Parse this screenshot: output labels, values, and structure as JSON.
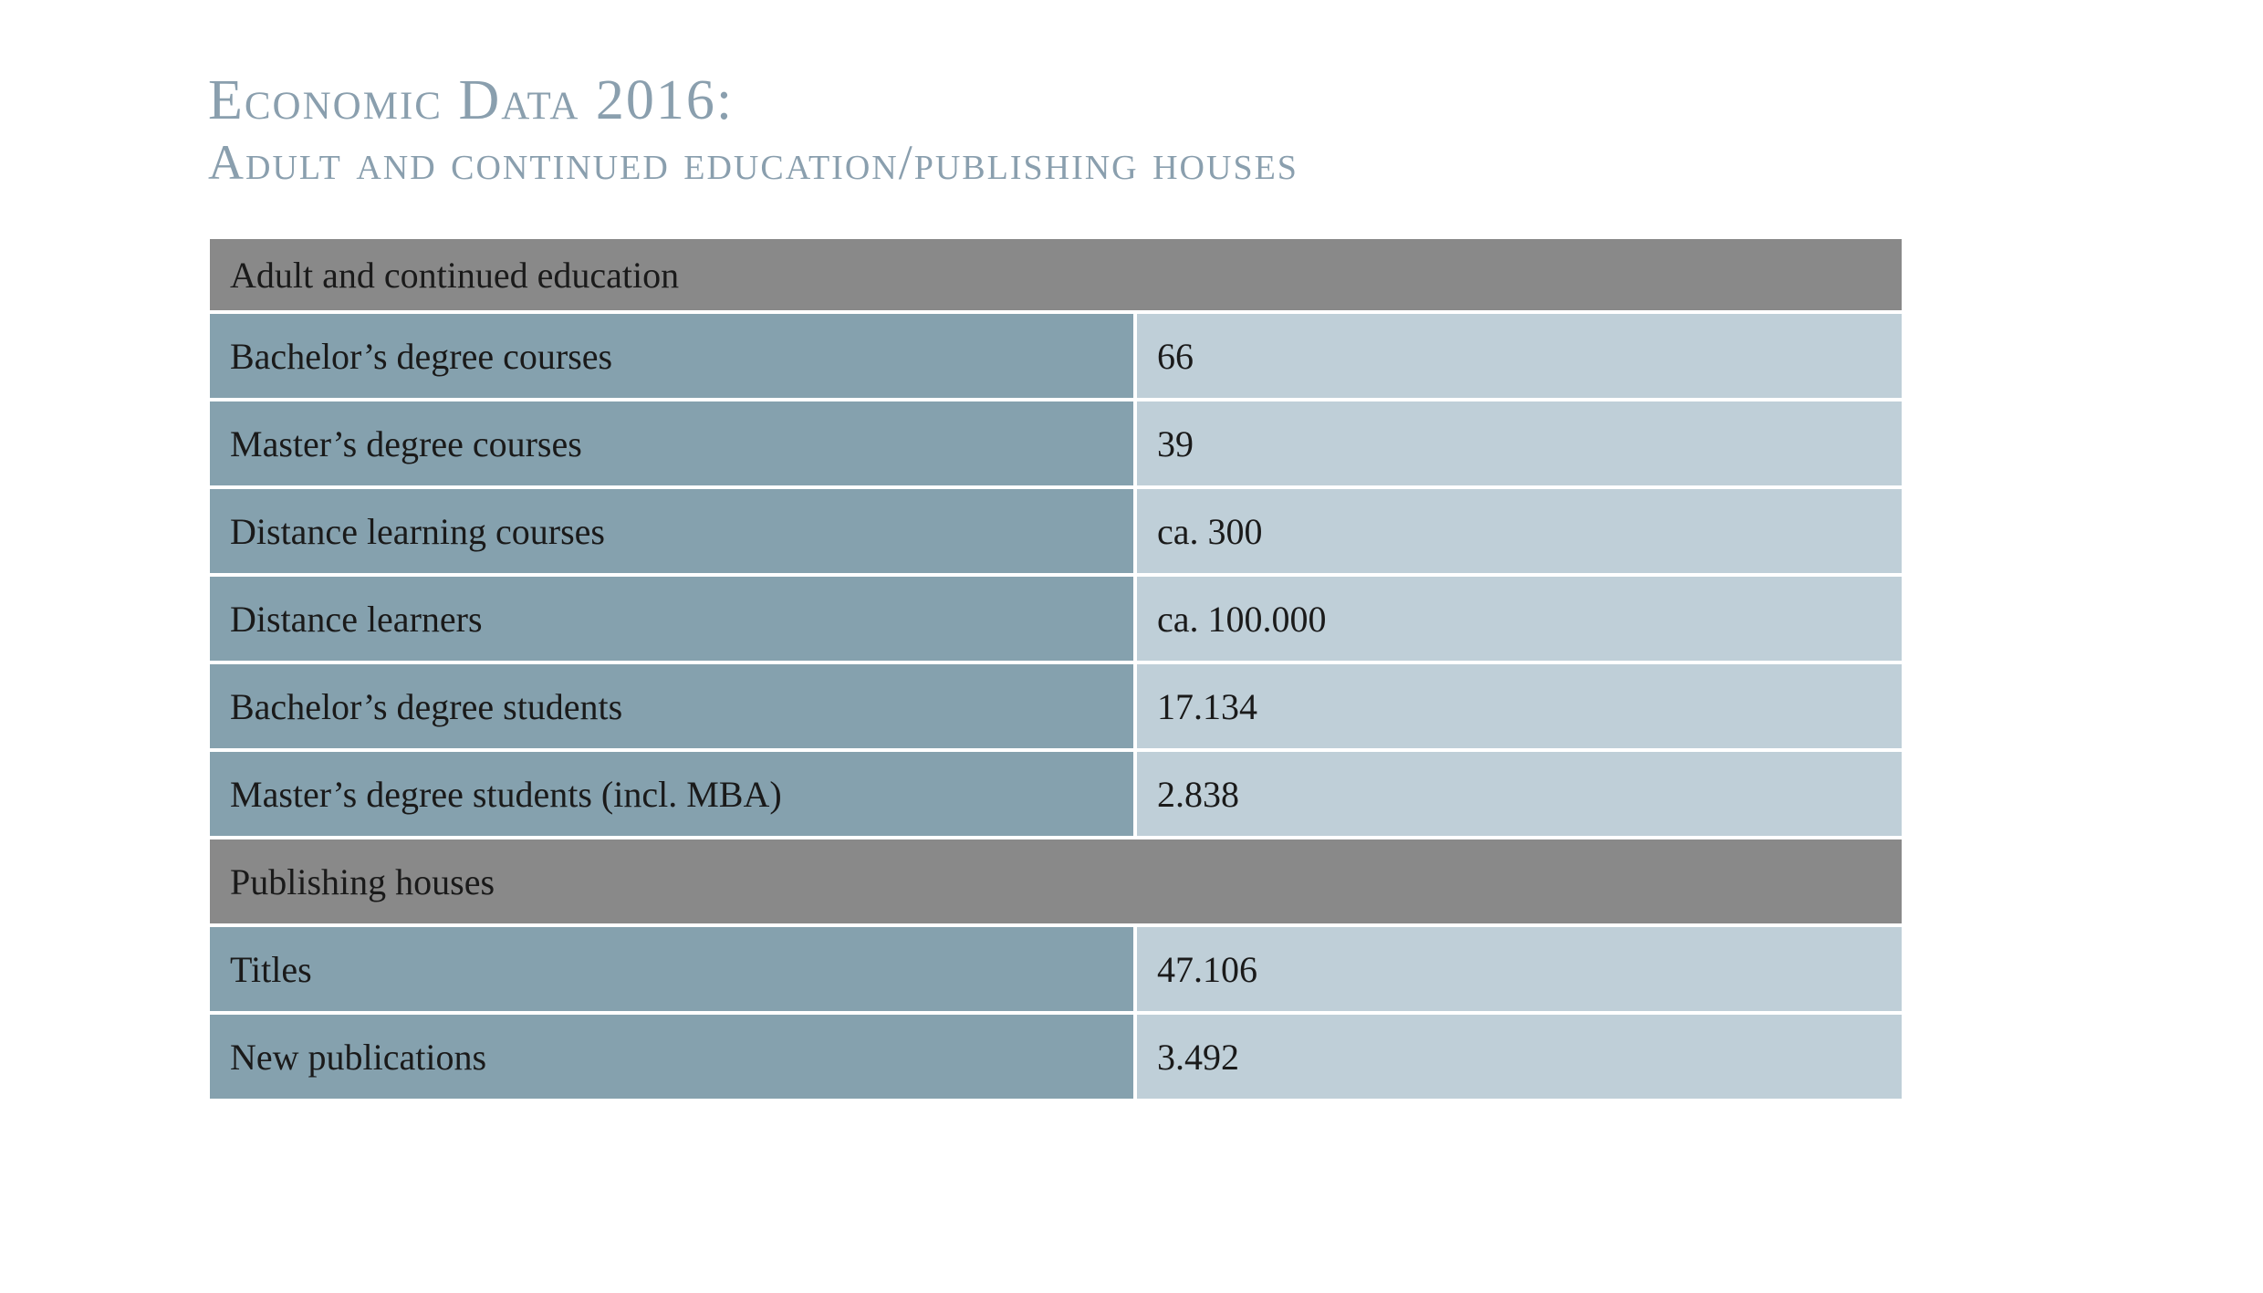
{
  "title": {
    "line1": "Economic Data 2016:",
    "line2": "Adult and continued education/publishing houses"
  },
  "sections": [
    {
      "heading": "Adult and continued education",
      "rows": [
        {
          "label": "Bachelor’s degree courses",
          "value": "66"
        },
        {
          "label": "Master’s degree courses",
          "value": "39"
        },
        {
          "label": "Distance learning courses",
          "value": "ca. 300"
        },
        {
          "label": "Distance learners",
          "value": "ca. 100.000"
        },
        {
          "label": "Bachelor’s degree students",
          "value": "17.134"
        },
        {
          "label": "Master’s degree students (incl. MBA)",
          "value": "2.838"
        }
      ]
    },
    {
      "heading": "Publishing houses",
      "rows": [
        {
          "label": "Titles",
          "value": "47.106"
        },
        {
          "label": "New publications",
          "value": "3.492"
        }
      ]
    }
  ],
  "colors": {
    "title": "#8a9fae",
    "section_header_bg": "#898989",
    "label_cell_bg": "#85a1ae",
    "value_cell_bg": "#bfcfd8"
  }
}
